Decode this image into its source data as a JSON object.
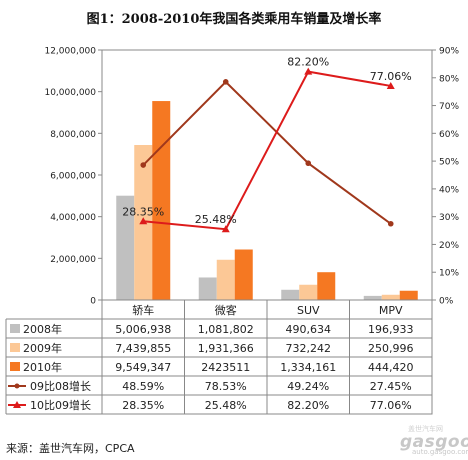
{
  "title": "图1：2008-2010年我国各类乘用车销量及增长率",
  "source": "来源：盖世汽车网，CPCA",
  "logo": {
    "brand": "gasgoo",
    "sub": "盖世汽车网",
    "url": "auto.gasgoo.com"
  },
  "colors": {
    "s2008": "#c0c0c0",
    "s2009": "#fcc896",
    "s2010": "#f57822",
    "g0908": "#a0381c",
    "g1009": "#dd1b1b",
    "axis": "#888888",
    "grid": "#9a9a9a"
  },
  "chart_data": {
    "type": "bar",
    "categories": [
      "轿车",
      "微客",
      "SUV",
      "MPV"
    ],
    "series": [
      {
        "name": "2008年",
        "values": [
          5006938,
          1081802,
          490634,
          196933
        ],
        "labels": [
          "5,006,938",
          "1,081,802",
          "490,634",
          "196,933"
        ]
      },
      {
        "name": "2009年",
        "values": [
          7439855,
          1931366,
          732242,
          250996
        ],
        "labels": [
          "7,439,855",
          "1,931,366",
          "732,242",
          "250,996"
        ]
      },
      {
        "name": "2010年",
        "values": [
          9549347,
          2423511,
          1334161,
          444420
        ],
        "labels": [
          "9,549,347",
          "2423511",
          "1,334,161",
          "444,420"
        ]
      }
    ],
    "line_series": [
      {
        "name": "09比08增长",
        "values": [
          48.59,
          78.53,
          49.24,
          27.45
        ],
        "labels": [
          "48.59%",
          "78.53%",
          "49.24%",
          "27.45%"
        ],
        "marker": "circle"
      },
      {
        "name": "10比09增长",
        "values": [
          28.35,
          25.48,
          82.2,
          77.06
        ],
        "labels": [
          "28.35%",
          "25.48%",
          "82.20%",
          "77.06%"
        ],
        "marker": "triangle",
        "point_labels": [
          "28.35%",
          "25.48%",
          "82.20%",
          "77.06%"
        ]
      }
    ],
    "ylim": [
      0,
      12000000
    ],
    "yticks": [
      "0",
      "2,000,000",
      "4,000,000",
      "6,000,000",
      "8,000,000",
      "10,000,000",
      "12,000,000"
    ],
    "y2lim": [
      0,
      90
    ],
    "y2ticks": [
      "0%",
      "10%",
      "20%",
      "30%",
      "40%",
      "50%",
      "60%",
      "70%",
      "80%",
      "90%"
    ],
    "data_table": true
  }
}
